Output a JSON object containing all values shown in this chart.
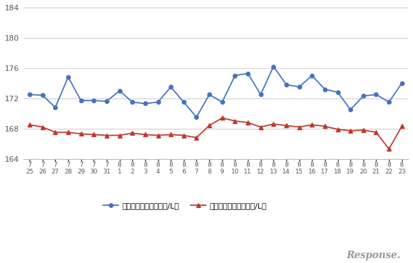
{
  "top_labels": [
    "7",
    "7",
    "7",
    "7",
    "7",
    "7",
    "7",
    "8",
    "8",
    "8",
    "8",
    "8",
    "8",
    "8",
    "8",
    "8",
    "8",
    "8",
    "8",
    "8",
    "8",
    "8",
    "8",
    "8",
    "8",
    "8",
    "8",
    "8",
    "8",
    "8"
  ],
  "bot_labels": [
    "25",
    "26",
    "27",
    "28",
    "29",
    "30",
    "31",
    "1",
    "2",
    "3",
    "4",
    "5",
    "6",
    "7",
    "8",
    "9",
    "10",
    "11",
    "12",
    "13",
    "14",
    "15",
    "16",
    "17",
    "18",
    "19",
    "20",
    "21",
    "22",
    "23"
  ],
  "blue_y": [
    172.5,
    172.4,
    170.8,
    174.8,
    171.7,
    171.7,
    171.6,
    173.0,
    171.5,
    171.3,
    171.5,
    173.5,
    171.5,
    169.5,
    172.5,
    171.5,
    175.0,
    175.3,
    172.5,
    176.2,
    173.8,
    173.5,
    175.0,
    173.2,
    172.8,
    170.5,
    172.3,
    172.5,
    171.5,
    174.0
  ],
  "red_y": [
    168.5,
    168.2,
    167.5,
    167.5,
    167.3,
    167.2,
    167.1,
    167.1,
    167.4,
    167.2,
    167.1,
    167.2,
    167.1,
    166.8,
    168.4,
    169.4,
    169.0,
    168.8,
    168.2,
    168.6,
    168.4,
    168.2,
    168.5,
    168.3,
    167.9,
    167.7,
    167.8,
    167.5,
    165.3,
    168.3
  ],
  "blue_color": "#4472c4",
  "red_color": "#c0392b",
  "blue_label": "ハイオク看板価格（円/L）",
  "red_label": "ハイオク実売価格（円/L）",
  "ylim": [
    164,
    184
  ],
  "yticks": [
    164,
    168,
    172,
    176,
    180,
    184
  ],
  "background_color": "#ffffff",
  "grid_color": "#cccccc",
  "watermark": "Response."
}
